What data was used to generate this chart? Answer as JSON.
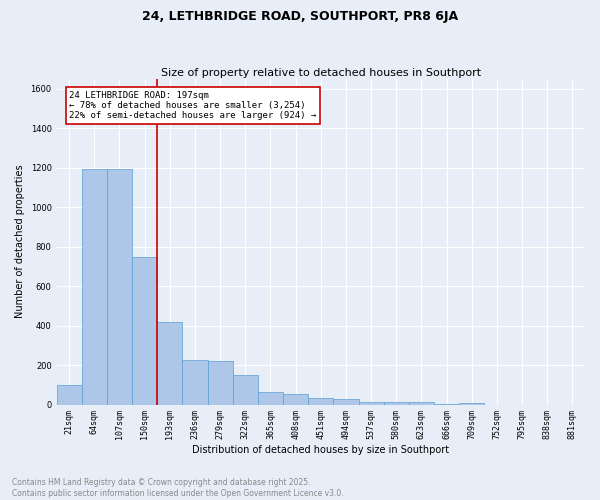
{
  "title": "24, LETHBRIDGE ROAD, SOUTHPORT, PR8 6JA",
  "subtitle": "Size of property relative to detached houses in Southport",
  "xlabel": "Distribution of detached houses by size in Southport",
  "ylabel": "Number of detached properties",
  "bar_color": "#aec6e8",
  "bar_edge_color": "#5a9fd4",
  "background_color": "#e8eef8",
  "grid_color": "#ffffff",
  "categories": [
    "21sqm",
    "64sqm",
    "107sqm",
    "150sqm",
    "193sqm",
    "236sqm",
    "279sqm",
    "322sqm",
    "365sqm",
    "408sqm",
    "451sqm",
    "494sqm",
    "537sqm",
    "580sqm",
    "623sqm",
    "666sqm",
    "709sqm",
    "752sqm",
    "795sqm",
    "838sqm",
    "881sqm"
  ],
  "values": [
    100,
    1195,
    1195,
    745,
    420,
    225,
    220,
    150,
    65,
    55,
    35,
    30,
    15,
    15,
    12,
    5,
    10,
    0,
    0,
    0,
    0
  ],
  "ylim": [
    0,
    1650
  ],
  "yticks": [
    0,
    200,
    400,
    600,
    800,
    1000,
    1200,
    1400,
    1600
  ],
  "property_bin_index": 4,
  "annotation_text": "24 LETHBRIDGE ROAD: 197sqm\n← 78% of detached houses are smaller (3,254)\n22% of semi-detached houses are larger (924) →",
  "annotation_box_color": "#ffffff",
  "annotation_box_edge_color": "#cc0000",
  "vline_color": "#cc0000",
  "footer_line1": "Contains HM Land Registry data © Crown copyright and database right 2025.",
  "footer_line2": "Contains public sector information licensed under the Open Government Licence v3.0.",
  "footer_color": "#888888",
  "title_fontsize": 9,
  "subtitle_fontsize": 8,
  "axis_label_fontsize": 7,
  "tick_fontsize": 6,
  "annotation_fontsize": 6.5,
  "footer_fontsize": 5.5
}
